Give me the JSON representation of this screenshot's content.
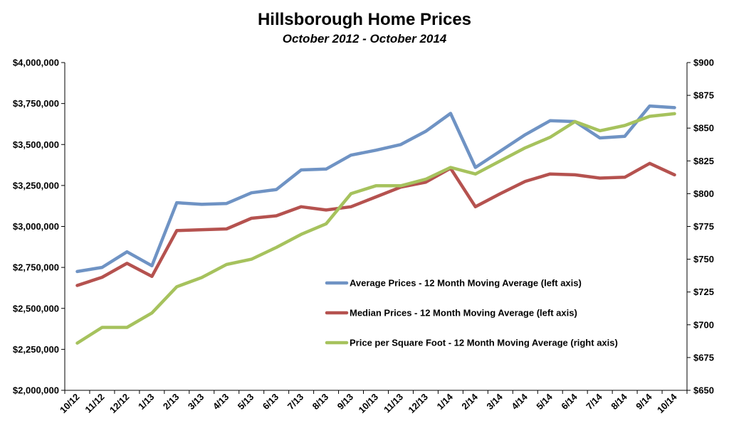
{
  "chart_data": {
    "type": "line",
    "title": "Hillsborough Home Prices",
    "subtitle": "October 2012 - October 2014",
    "categories": [
      "10/12",
      "11/12",
      "12/12",
      "1/13",
      "2/13",
      "3/13",
      "4/13",
      "5/13",
      "6/13",
      "7/13",
      "8/13",
      "9/13",
      "10/13",
      "11/13",
      "12/13",
      "1/14",
      "2/14",
      "3/14",
      "4/14",
      "5/14",
      "6/14",
      "7/14",
      "8/14",
      "9/14",
      "10/14"
    ],
    "left_axis": {
      "ylim": [
        2000000,
        4000000
      ],
      "ticks": [
        2000000,
        2250000,
        2500000,
        2750000,
        3000000,
        3250000,
        3500000,
        3750000,
        4000000
      ],
      "tick_labels": [
        "$2,000,000",
        "$2,250,000",
        "$2,500,000",
        "$2,750,000",
        "$3,000,000",
        "$3,250,000",
        "$3,500,000",
        "$3,750,000",
        "$4,000,000"
      ]
    },
    "right_axis": {
      "ylim": [
        650,
        900
      ],
      "ticks": [
        650,
        675,
        700,
        725,
        750,
        775,
        800,
        825,
        850,
        875,
        900
      ],
      "tick_labels": [
        "$650",
        "$675",
        "$700",
        "$725",
        "$750",
        "$775",
        "$800",
        "$825",
        "$850",
        "$875",
        "$900"
      ]
    },
    "series": [
      {
        "name": "Average Prices - 12 Month Moving Average (left axis)",
        "axis": "left",
        "color": "#6f93c4",
        "values": [
          2725000,
          2750000,
          2845000,
          2760000,
          3145000,
          3135000,
          3140000,
          3205000,
          3225000,
          3345000,
          3350000,
          3435000,
          3465000,
          3500000,
          3580000,
          3690000,
          3360000,
          3460000,
          3560000,
          3645000,
          3640000,
          3540000,
          3550000,
          3735000,
          3725000
        ]
      },
      {
        "name": "Median Prices - 12 Month Moving Average (left axis)",
        "axis": "left",
        "color": "#b5524f",
        "values": [
          2640000,
          2690000,
          2775000,
          2695000,
          2975000,
          2980000,
          2985000,
          3050000,
          3065000,
          3120000,
          3100000,
          3120000,
          3180000,
          3240000,
          3270000,
          3355000,
          3120000,
          3200000,
          3275000,
          3320000,
          3315000,
          3295000,
          3300000,
          3385000,
          3315000
        ]
      },
      {
        "name": "Price per Square Foot - 12 Month Moving Average (right axis)",
        "axis": "right",
        "color": "#a6c25d",
        "values": [
          686,
          698,
          698,
          709,
          729,
          736,
          746,
          750,
          759,
          769,
          777,
          800,
          806,
          806,
          811,
          820,
          815,
          825,
          835,
          843,
          855,
          848,
          852,
          859,
          861
        ]
      }
    ],
    "legend_position": "inside-right"
  }
}
